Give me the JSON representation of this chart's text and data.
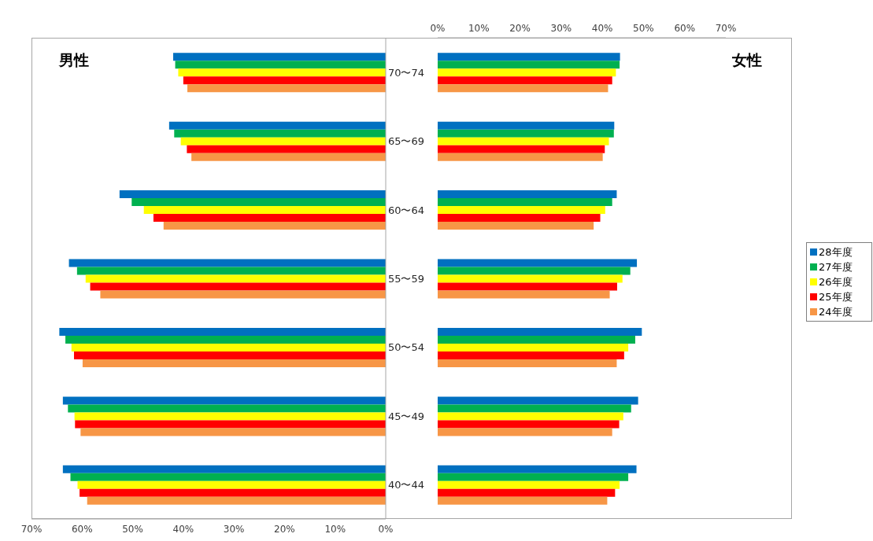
{
  "chart_data": [
    {
      "type": "bar",
      "orientation": "horizontal",
      "title": "男性",
      "categories": [
        null,
        null,
        null,
        null,
        null,
        null,
        null
      ],
      "xlim": [
        70,
        0
      ],
      "xticks": [
        {
          "value": 70,
          "label": "70%"
        },
        {
          "value": 60,
          "label": "60%"
        },
        {
          "value": 50,
          "label": "50%"
        },
        {
          "value": 40,
          "label": "40%"
        },
        {
          "value": 30,
          "label": "30%"
        },
        {
          "value": 20,
          "label": "20%"
        },
        {
          "value": 10,
          "label": "10%"
        },
        {
          "value": 0,
          "label": "0%"
        }
      ],
      "tick_labels": "x",
      "grid": false,
      "legend": false,
      "series": [
        {
          "color": "#0070c0",
          "values": [
            42.0,
            42.8,
            52.6,
            62.6,
            64.5,
            63.8,
            63.8
          ]
        },
        {
          "color": "#00b050",
          "values": [
            41.6,
            41.8,
            50.2,
            61.0,
            63.3,
            62.8,
            62.3
          ]
        },
        {
          "color": "#ffff00",
          "values": [
            41.0,
            40.5,
            47.8,
            59.3,
            62.1,
            61.5,
            60.9
          ]
        },
        {
          "color": "#ff0000",
          "values": [
            40.0,
            39.3,
            45.9,
            58.4,
            61.6,
            61.4,
            60.5
          ]
        },
        {
          "color": "#f79646",
          "values": [
            39.2,
            38.4,
            43.9,
            56.4,
            59.9,
            60.3,
            59.0
          ]
        }
      ]
    },
    {
      "type": "bar",
      "orientation": "horizontal",
      "title": "女性",
      "categories": [
        "70〜74",
        "65〜69",
        "60〜64",
        "55〜59",
        "50〜54",
        "45〜49",
        "40〜44"
      ],
      "xlim": [
        0,
        70
      ],
      "xticks": [
        {
          "value": 0,
          "label": "0%"
        },
        {
          "value": 10,
          "label": "10%"
        },
        {
          "value": 20,
          "label": "20%"
        },
        {
          "value": 30,
          "label": "30%"
        },
        {
          "value": 40,
          "label": "40%"
        },
        {
          "value": 50,
          "label": "50%"
        },
        {
          "value": 60,
          "label": "60%"
        },
        {
          "value": 70,
          "label": "70%"
        }
      ],
      "grid": false,
      "legend": "right",
      "series": [
        {
          "name": "28年度",
          "color": "#0070c0",
          "values": [
            44.3,
            42.9,
            43.5,
            48.4,
            49.6,
            48.7,
            48.3
          ]
        },
        {
          "name": "27年度",
          "color": "#00b050",
          "values": [
            44.2,
            42.8,
            42.4,
            46.8,
            48.0,
            47.0,
            46.3
          ]
        },
        {
          "name": "26年度",
          "color": "#ffff00",
          "values": [
            43.3,
            41.6,
            40.7,
            44.9,
            46.3,
            45.1,
            44.2
          ]
        },
        {
          "name": "25年度",
          "color": "#ff0000",
          "values": [
            42.4,
            40.6,
            39.5,
            43.6,
            45.3,
            44.1,
            43.1
          ]
        },
        {
          "name": "24年度",
          "color": "#f79646",
          "values": [
            41.4,
            40.1,
            37.9,
            41.8,
            43.5,
            42.4,
            41.2
          ]
        }
      ]
    }
  ]
}
